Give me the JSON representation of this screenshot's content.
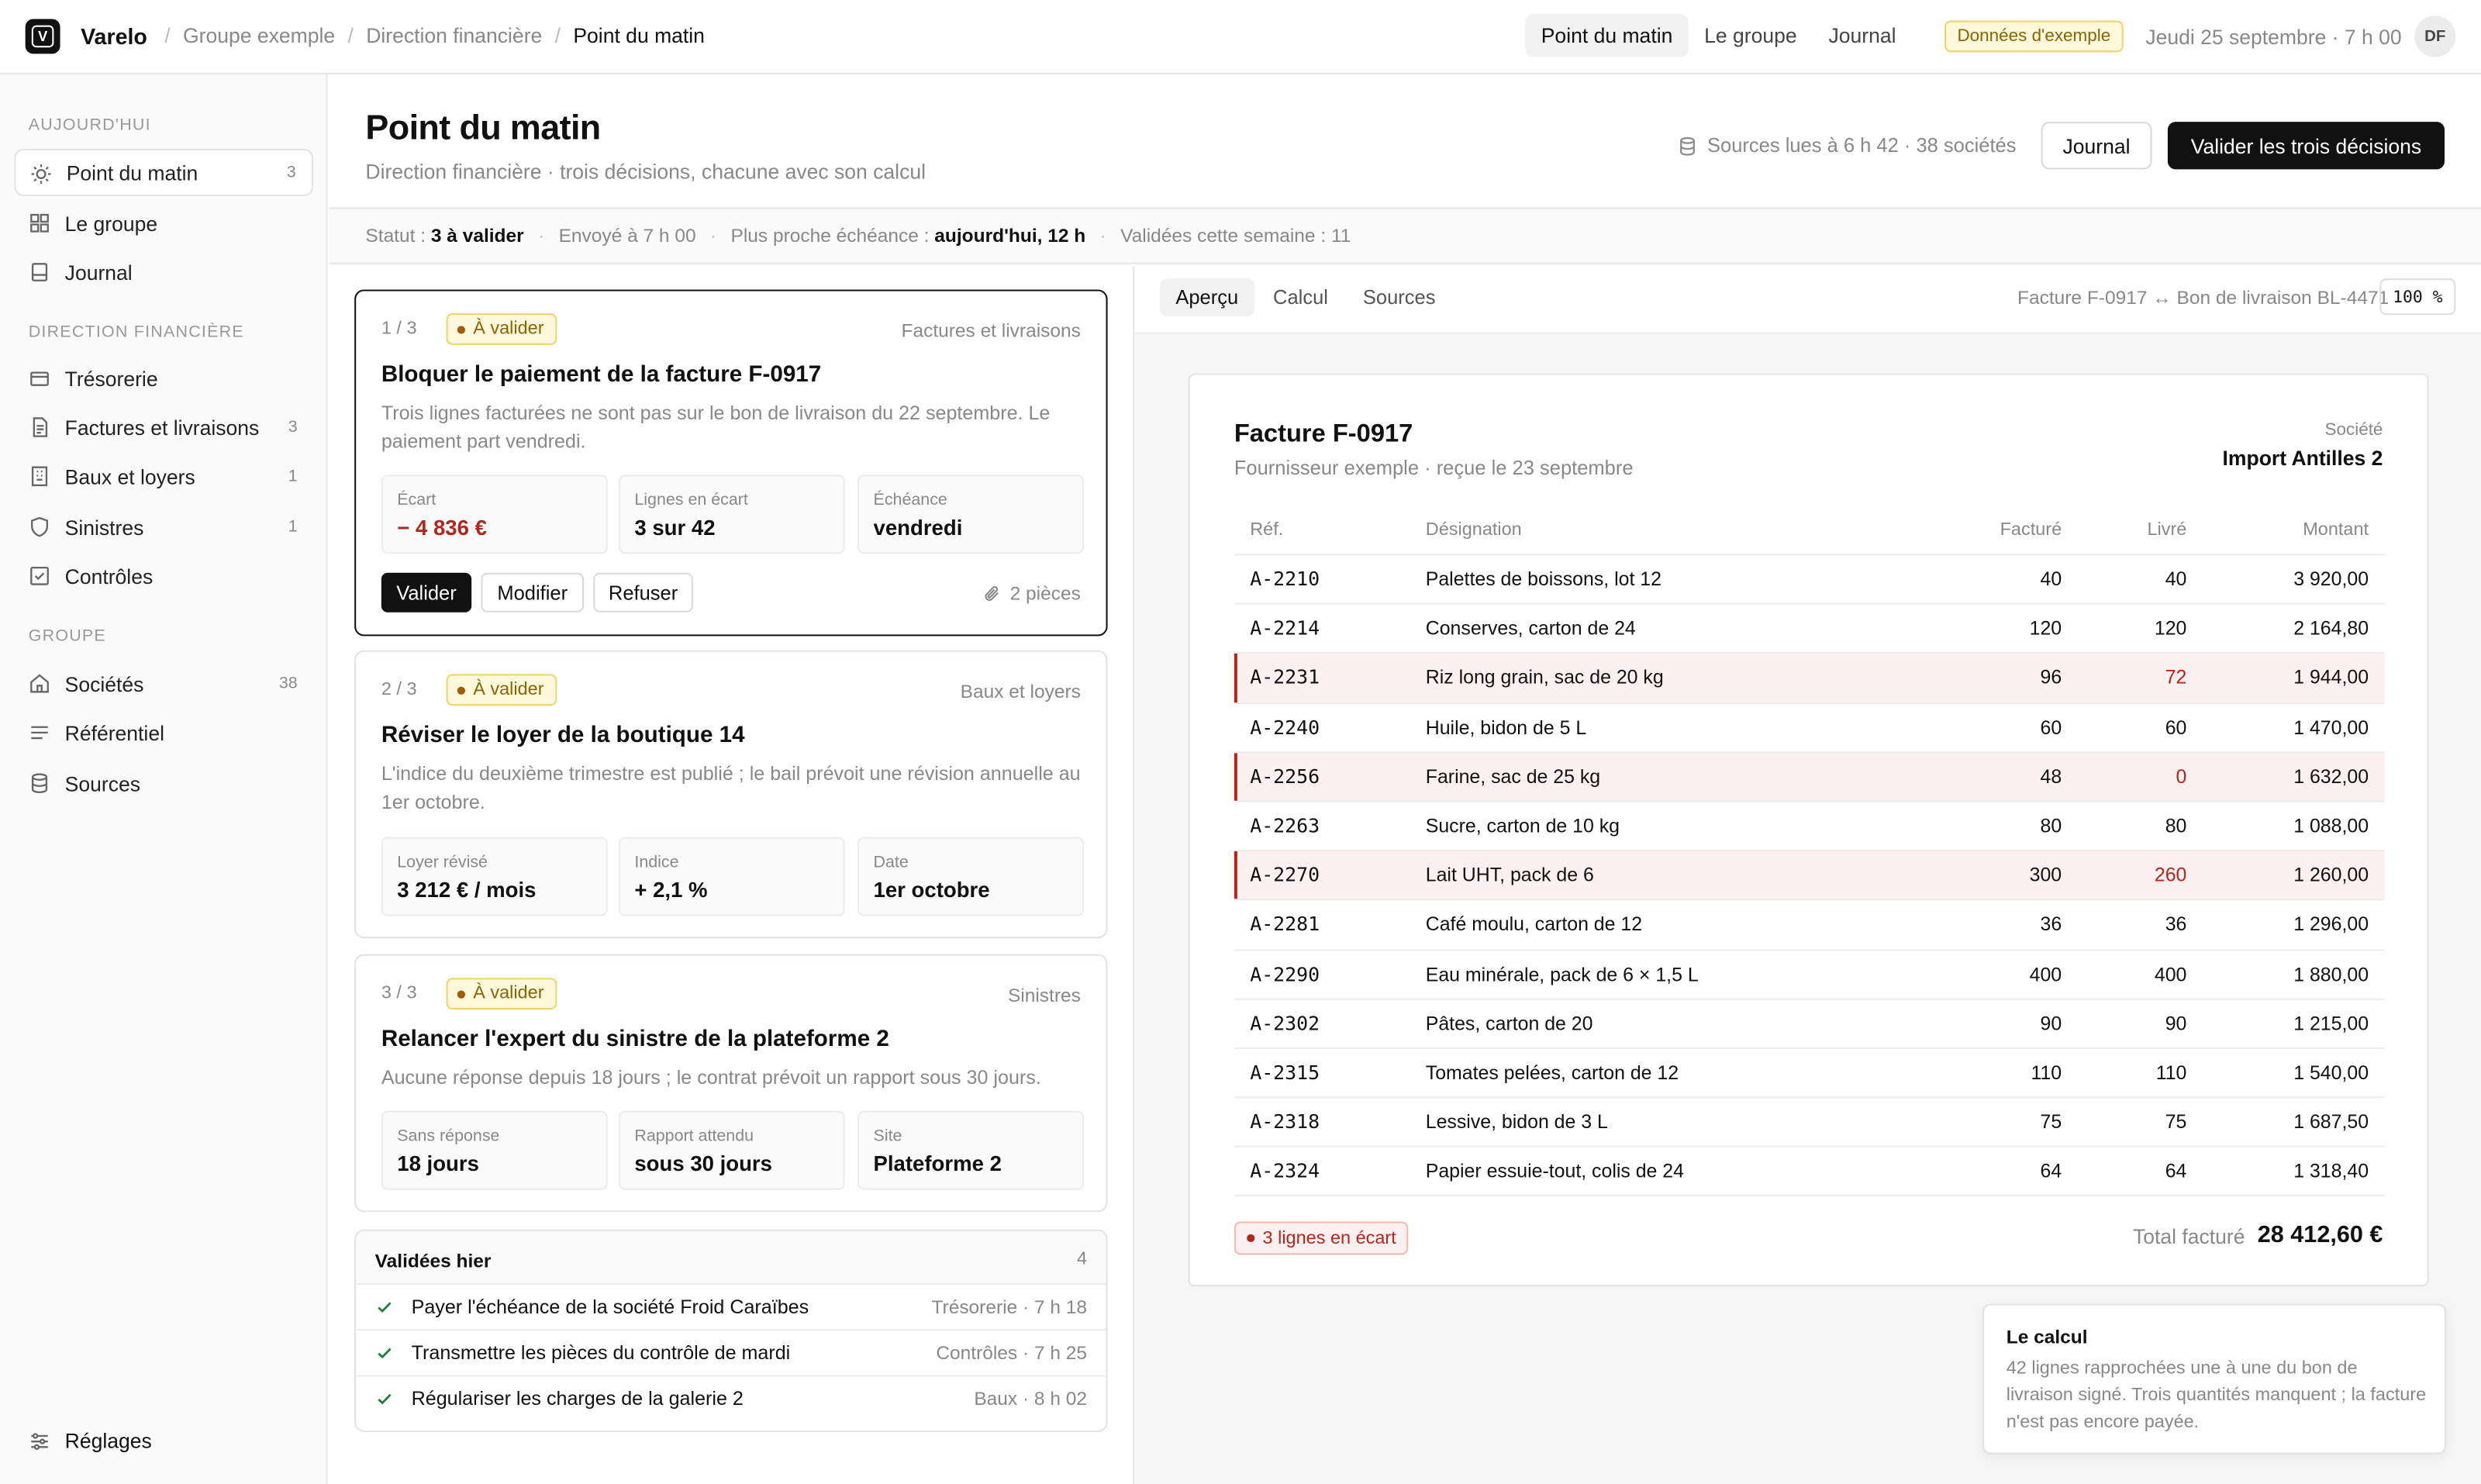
{
  "app": {
    "name": "Varelo",
    "logo_letter": "V"
  },
  "breadcrumb": [
    "Groupe exemple",
    "Direction financière",
    "Point du matin"
  ],
  "topnav": [
    {
      "label": "Point du matin",
      "active": true
    },
    {
      "label": "Le groupe",
      "active": false
    },
    {
      "label": "Journal",
      "active": false
    }
  ],
  "demo_badge": "Données d'exemple",
  "top_date": "Jeudi 25 septembre · 7 h 00",
  "user_initials": "DF",
  "sidebar": {
    "section_today": "AUJOURD'HUI",
    "today_items": [
      {
        "label": "Point du matin",
        "count": "3",
        "icon": "sun-icon",
        "active": true
      },
      {
        "label": "Le groupe",
        "count": "",
        "icon": "grid-icon"
      },
      {
        "label": "Journal",
        "count": "",
        "icon": "journal-icon"
      }
    ],
    "section_finance": "DIRECTION FINANCIÈRE",
    "finance_items": [
      {
        "label": "Trésorerie",
        "count": "",
        "icon": "wallet-icon"
      },
      {
        "label": "Factures et livraisons",
        "count": "3",
        "icon": "document-icon"
      },
      {
        "label": "Baux et loyers",
        "count": "1",
        "icon": "building-icon"
      },
      {
        "label": "Sinistres",
        "count": "1",
        "icon": "shield-icon"
      },
      {
        "label": "Contrôles",
        "count": "",
        "icon": "checkbox-icon"
      }
    ],
    "section_group": "GROUPE",
    "group_items": [
      {
        "label": "Sociétés",
        "count": "38",
        "icon": "home-icon"
      },
      {
        "label": "Référentiel",
        "count": "",
        "icon": "list-icon"
      },
      {
        "label": "Sources",
        "count": "",
        "icon": "database-icon"
      }
    ],
    "settings": "Réglages"
  },
  "header": {
    "title": "Point du matin",
    "subtitle": "Direction financière · trois décisions, chacune avec son calcul",
    "sources_read": "Sources lues à 6 h 42 · 38 sociétés",
    "journal_button": "Journal",
    "validate_all_button": "Valider les trois décisions"
  },
  "status": {
    "status_label": "Statut :",
    "status_value": "3 à valider",
    "sent": "Envoyé à 7 h 00",
    "deadline_label": "Plus proche échéance :",
    "deadline_value": "aujourd'hui, 12 h",
    "validated_week": "Validées cette semaine : 11"
  },
  "cards": [
    {
      "step": "1  /  3",
      "badge": "À valider",
      "category": "Factures et livraisons",
      "title": "Bloquer le paiement de la facture F-0917",
      "description": "Trois lignes facturées ne sont pas sur le bon de livraison du 22 septembre. Le paiement part vendredi.",
      "metrics": [
        {
          "label": "Écart",
          "value": "− 4 836 €",
          "negative": true
        },
        {
          "label": "Lignes en écart",
          "value": "3 sur 42"
        },
        {
          "label": "Échéance",
          "value": "vendredi"
        }
      ],
      "buttons": {
        "validate": "Valider",
        "edit": "Modifier",
        "refuse": "Refuser"
      },
      "attachments": "2 pièces"
    },
    {
      "step": "2  /  3",
      "badge": "À valider",
      "category": "Baux et loyers",
      "title": "Réviser le loyer de la boutique 14",
      "description": "L'indice du deuxième trimestre est publié ; le bail prévoit une révision annuelle au 1er octobre.",
      "metrics": [
        {
          "label": "Loyer révisé",
          "value": "3 212 € / mois"
        },
        {
          "label": "Indice",
          "value": "+ 2,1 %"
        },
        {
          "label": "Date",
          "value": "1er octobre"
        }
      ]
    },
    {
      "step": "3  /  3",
      "badge": "À valider",
      "category": "Sinistres",
      "title": "Relancer l'expert du sinistre de la plateforme 2",
      "description": "Aucune réponse depuis 18 jours ; le contrat prévoit un rapport sous 30 jours.",
      "metrics": [
        {
          "label": "Sans réponse",
          "value": "18 jours"
        },
        {
          "label": "Rapport attendu",
          "value": "sous 30 jours"
        },
        {
          "label": "Site",
          "value": "Plateforme 2"
        }
      ]
    }
  ],
  "yesterday": {
    "title": "Validées hier",
    "count": "4",
    "items": [
      {
        "label": "Payer l'échéance de la société Froid Caraïbes",
        "meta": "Trésorerie · 7 h 18"
      },
      {
        "label": "Transmettre les pièces du contrôle de mardi",
        "meta": "Contrôles · 7 h 25"
      },
      {
        "label": "Régulariser les charges de la galerie 2",
        "meta": "Baux · 8 h 02"
      }
    ]
  },
  "preview": {
    "tabs": [
      "Aperçu",
      "Calcul",
      "Sources"
    ],
    "reference": "Facture F-0917 ↔ Bon de livraison BL-4471",
    "zoom": "100 %"
  },
  "invoice": {
    "title": "Facture F-0917",
    "subtitle": "Fournisseur exemple · reçue le 23 septembre",
    "company_label": "Société",
    "company": "Import Antilles 2",
    "columns": [
      "Réf.",
      "Désignation",
      "Facturé",
      "Livré",
      "Montant"
    ],
    "rows": [
      {
        "ref": "A-2210",
        "designation": "Palettes de boissons, lot 12",
        "billed": "40",
        "delivered": "40",
        "amount": "3 920,00",
        "flag": false
      },
      {
        "ref": "A-2214",
        "designation": "Conserves, carton de 24",
        "billed": "120",
        "delivered": "120",
        "amount": "2 164,80",
        "flag": false
      },
      {
        "ref": "A-2231",
        "designation": "Riz long grain, sac de 20 kg",
        "billed": "96",
        "delivered": "72",
        "amount": "1 944,00",
        "flag": true
      },
      {
        "ref": "A-2240",
        "designation": "Huile, bidon de 5 L",
        "billed": "60",
        "delivered": "60",
        "amount": "1 470,00",
        "flag": false
      },
      {
        "ref": "A-2256",
        "designation": "Farine, sac de 25 kg",
        "billed": "48",
        "delivered": "0",
        "amount": "1 632,00",
        "flag": true
      },
      {
        "ref": "A-2263",
        "designation": "Sucre, carton de 10 kg",
        "billed": "80",
        "delivered": "80",
        "amount": "1 088,00",
        "flag": false
      },
      {
        "ref": "A-2270",
        "designation": "Lait UHT, pack de 6",
        "billed": "300",
        "delivered": "260",
        "amount": "1 260,00",
        "flag": true
      },
      {
        "ref": "A-2281",
        "designation": "Café moulu, carton de 12",
        "billed": "36",
        "delivered": "36",
        "amount": "1 296,00",
        "flag": false
      },
      {
        "ref": "A-2290",
        "designation": "Eau minérale, pack de 6 × 1,5 L",
        "billed": "400",
        "delivered": "400",
        "amount": "1 880,00",
        "flag": false
      },
      {
        "ref": "A-2302",
        "designation": "Pâtes, carton de 20",
        "billed": "90",
        "delivered": "90",
        "amount": "1 215,00",
        "flag": false
      },
      {
        "ref": "A-2315",
        "designation": "Tomates pelées, carton de 12",
        "billed": "110",
        "delivered": "110",
        "amount": "1 540,00",
        "flag": false
      },
      {
        "ref": "A-2318",
        "designation": "Lessive, bidon de 3 L",
        "billed": "75",
        "delivered": "75",
        "amount": "1 687,50",
        "flag": false
      },
      {
        "ref": "A-2324",
        "designation": "Papier essuie-tout, colis de 24",
        "billed": "64",
        "delivered": "64",
        "amount": "1 318,40",
        "flag": false
      }
    ],
    "gap_badge": "3 lignes en écart",
    "total_label": "Total facturé",
    "total_value": "28 412,60 €"
  },
  "calc_note": {
    "title": "Le calcul",
    "text": "42 lignes rapprochées une à une du bon de livraison signé. Trois quantités manquent ; la facture n'est pas encore payée."
  }
}
